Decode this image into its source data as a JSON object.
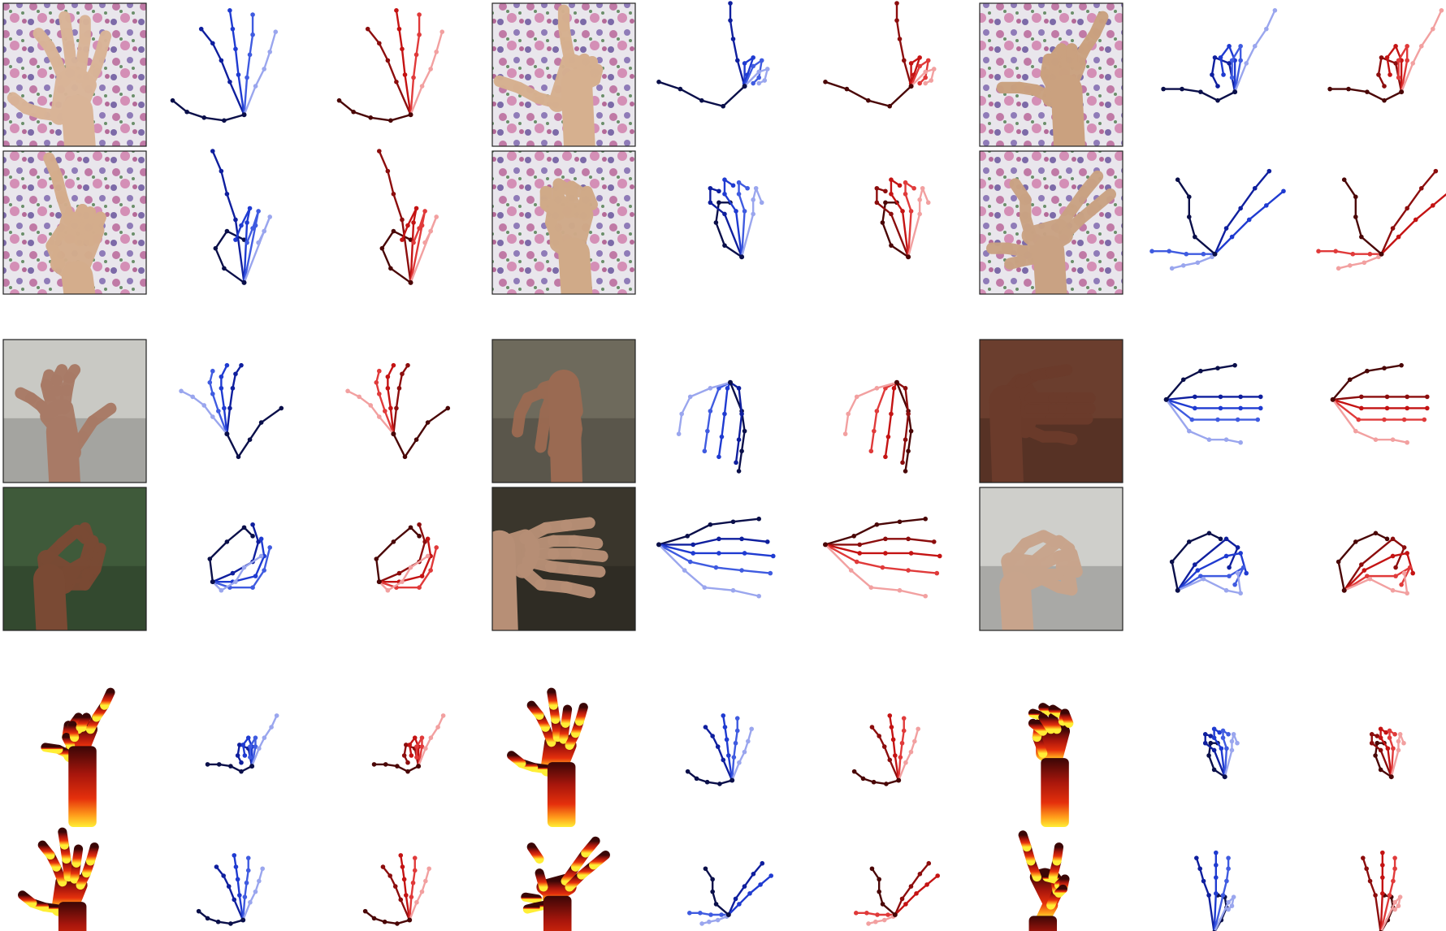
{
  "figure": {
    "caption": "",
    "groups": [
      {
        "id": "rgb-indoor",
        "image_kind": "rgb",
        "background": "floral",
        "samples": [
          {
            "pose": "open",
            "skin": "#d9b497"
          },
          {
            "pose": "L",
            "skin": "#d6b08f"
          },
          {
            "pose": "yo",
            "skin": "#caa17f"
          },
          {
            "pose": "one",
            "skin": "#d4ad8c"
          },
          {
            "pose": "fist",
            "skin": "#d0aa88"
          },
          {
            "pose": "v",
            "skin": "#c9a283"
          }
        ]
      },
      {
        "id": "rgb-synthetic",
        "image_kind": "rgb",
        "background": "mixed",
        "samples": [
          {
            "pose": "grip",
            "skin": "#a87a66",
            "bg": "#c9c9c4"
          },
          {
            "pose": "down",
            "skin": "#9a6a52",
            "bg": "#6e6a5c"
          },
          {
            "pose": "flat",
            "skin": "#6b3b2b",
            "bg": "#6b3e2e"
          },
          {
            "pose": "curl",
            "skin": "#7a4a34",
            "bg": "#3f5a3a"
          },
          {
            "pose": "flat2",
            "skin": "#b78f76",
            "bg": "#3a362c"
          },
          {
            "pose": "claw",
            "skin": "#c8a48c",
            "bg": "#cfcfcb"
          }
        ]
      },
      {
        "id": "depth",
        "image_kind": "depth",
        "background": "white",
        "samples": [
          {
            "pose": "yo"
          },
          {
            "pose": "open"
          },
          {
            "pose": "fist"
          },
          {
            "pose": "open"
          },
          {
            "pose": "v"
          },
          {
            "pose": "three"
          }
        ]
      }
    ],
    "colors": {
      "blue_fingers": [
        "#0a0f4a",
        "#0f1f9e",
        "#1f3bd1",
        "#3f5be0",
        "#9aa6ee"
      ],
      "red_fingers": [
        "#4a0606",
        "#8c0d0d",
        "#c41313",
        "#e03a3a",
        "#f2a0a0"
      ],
      "depth_near": "#3a0606",
      "depth_mid": "#d9250c",
      "depth_far": "#ffe82a"
    }
  }
}
